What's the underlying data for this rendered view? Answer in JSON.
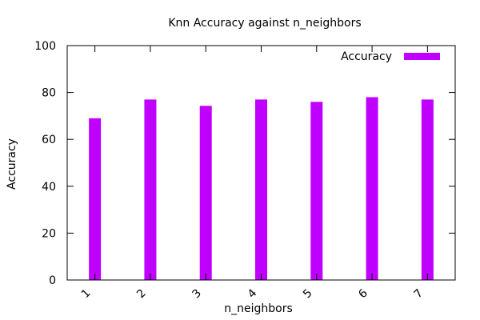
{
  "chart_data": {
    "type": "bar",
    "title": "Knn Accuracy against n_neighbors",
    "xlabel": "n_neighbors",
    "ylabel": "Accuracy",
    "categories": [
      "1",
      "2",
      "3",
      "4",
      "5",
      "6",
      "7"
    ],
    "series": [
      {
        "name": "Accuracy",
        "values": [
          69,
          77,
          74.3,
          77,
          76,
          78,
          77
        ],
        "color": "#c000ff"
      }
    ],
    "ylim": [
      0,
      100
    ],
    "yticks": [
      "0",
      "20",
      "40",
      "60",
      "80",
      "100"
    ],
    "grid": false,
    "legend_position": "top-right"
  }
}
